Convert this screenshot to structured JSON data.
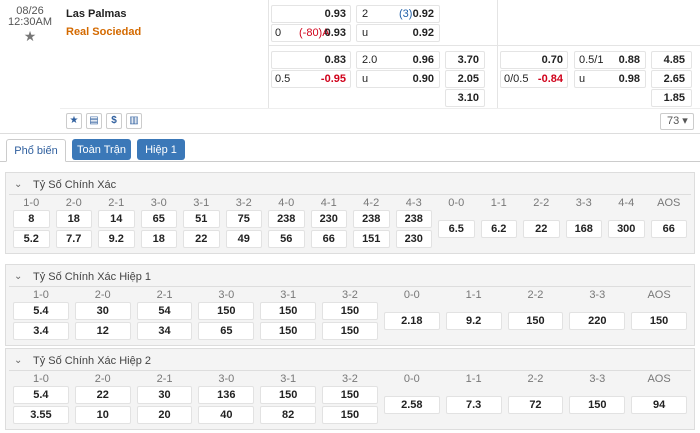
{
  "match": {
    "date": "08/26",
    "time": "12:30AM",
    "home": "Las Palmas",
    "away": "Real Sociedad"
  },
  "labels": {
    "under": "u"
  },
  "main_market": {
    "hcap_home": "0.93",
    "ou_line": "2",
    "ou_corner": "(3)",
    "over": "0.92",
    "hcap_line": "0",
    "hcap_corner": "(-80)A",
    "hcap_away": "0.93",
    "under": "0.92"
  },
  "full_time": {
    "home": "0.83",
    "ou_line": "2.0",
    "over": "0.96",
    "hcap_line": "0.5",
    "away": "-0.95",
    "under": "0.90",
    "x12": [
      "3.70",
      "2.05",
      "3.10"
    ]
  },
  "first_half": {
    "home": "0.70",
    "ou_line": "0.5/1",
    "over": "0.88",
    "hcap_line": "0/0.5",
    "away": "-0.84",
    "under": "0.98",
    "x12": [
      "4.85",
      "2.65",
      "1.85"
    ]
  },
  "more_count": "73",
  "tabs": [
    "Phổ biến",
    "Toàn Trận",
    "Hiệp 1"
  ],
  "sections": [
    {
      "title": "Tỷ Số Chính Xác",
      "columns": [
        "1-0",
        "2-0",
        "2-1",
        "3-0",
        "3-1",
        "3-2",
        "4-0",
        "4-1",
        "4-2",
        "4-3",
        "0-0",
        "1-1",
        "2-2",
        "3-3",
        "4-4",
        "AOS"
      ],
      "rows": [
        [
          "8",
          "18",
          "14",
          "65",
          "51",
          "75",
          "238",
          "230",
          "238",
          "238"
        ],
        [
          "5.2",
          "7.7",
          "9.2",
          "18",
          "22",
          "49",
          "56",
          "66",
          "151",
          "230"
        ]
      ],
      "others": [
        "6.5",
        "6.2",
        "22",
        "168",
        "300",
        "66"
      ]
    },
    {
      "title": "Tỷ Số Chính Xác Hiệp 1",
      "columns": [
        "1-0",
        "2-0",
        "2-1",
        "3-0",
        "3-1",
        "3-2",
        "0-0",
        "1-1",
        "2-2",
        "3-3",
        "AOS"
      ],
      "rows": [
        [
          "5.4",
          "30",
          "54",
          "150",
          "150",
          "150"
        ],
        [
          "3.4",
          "12",
          "34",
          "65",
          "150",
          "150"
        ]
      ],
      "others": [
        "2.18",
        "9.2",
        "150",
        "220",
        "150"
      ]
    },
    {
      "title": "Tỷ Số Chính Xác Hiệp 2",
      "columns": [
        "1-0",
        "2-0",
        "2-1",
        "3-0",
        "3-1",
        "3-2",
        "0-0",
        "1-1",
        "2-2",
        "3-3",
        "AOS"
      ],
      "rows": [
        [
          "5.4",
          "22",
          "30",
          "136",
          "150",
          "150"
        ],
        [
          "3.55",
          "10",
          "20",
          "40",
          "82",
          "150"
        ]
      ],
      "others": [
        "2.58",
        "7.3",
        "72",
        "150",
        "94"
      ]
    }
  ]
}
